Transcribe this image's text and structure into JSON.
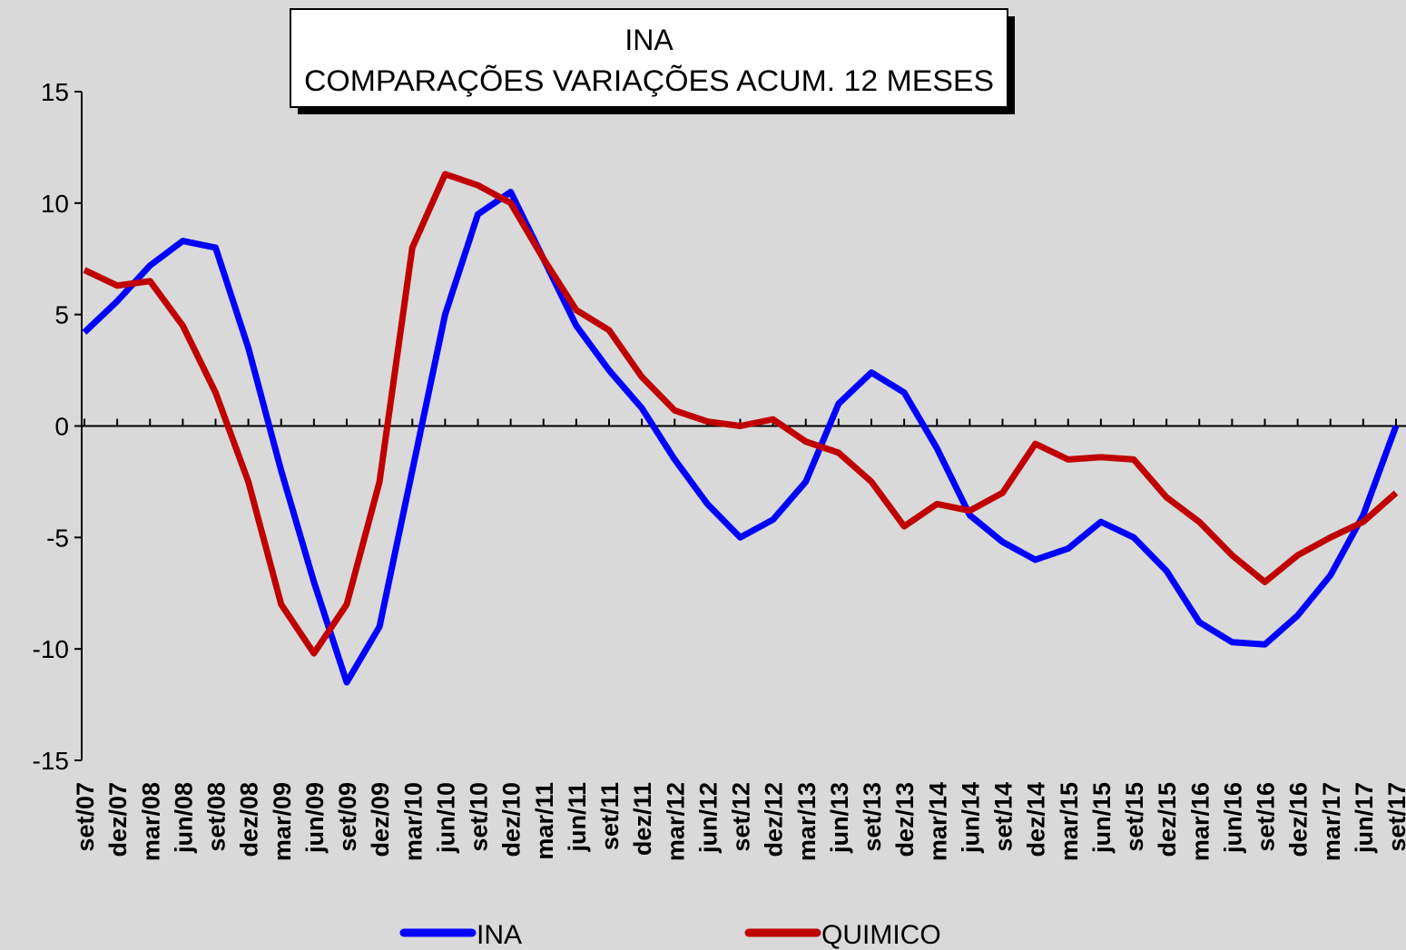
{
  "chart_data": {
    "type": "line",
    "title": [
      "INA",
      "COMPARAÇÕES VARIAÇÕES ACUM. 12 MESES"
    ],
    "categories": [
      "set/07",
      "dez/07",
      "mar/08",
      "jun/08",
      "set/08",
      "dez/08",
      "mar/09",
      "jun/09",
      "set/09",
      "dez/09",
      "mar/10",
      "jun/10",
      "set/10",
      "dez/10",
      "mar/11",
      "jun/11",
      "set/11",
      "dez/11",
      "mar/12",
      "jun/12",
      "set/12",
      "dez/12",
      "mar/13",
      "jun/13",
      "set/13",
      "dez/13",
      "mar/14",
      "jun/14",
      "set/14",
      "dez/14",
      "mar/15",
      "jun/15",
      "set/15",
      "dez/15",
      "mar/16",
      "jun/16",
      "set/16",
      "dez/16",
      "mar/17",
      "jun/17",
      "set/17"
    ],
    "series": [
      {
        "name": "INA",
        "color": "#0000ff",
        "values": [
          4.2,
          5.6,
          7.2,
          8.3,
          8.0,
          3.5,
          -2.0,
          -7.0,
          -11.5,
          -9.0,
          -2.0,
          5.0,
          9.5,
          10.5,
          7.5,
          4.5,
          2.5,
          0.8,
          -1.5,
          -3.5,
          -5.0,
          -4.2,
          -2.5,
          1.0,
          2.4,
          1.5,
          -1.0,
          -4.0,
          -5.2,
          -6.0,
          -5.5,
          -4.3,
          -5.0,
          -6.5,
          -8.8,
          -9.7,
          -9.8,
          -8.5,
          -6.7,
          -4.0,
          0.0
        ]
      },
      {
        "name": "QUIMICO",
        "color": "#c00000",
        "values": [
          7.0,
          6.3,
          6.5,
          4.5,
          1.5,
          -2.5,
          -8.0,
          -10.2,
          -8.0,
          -2.5,
          8.0,
          11.3,
          10.8,
          10.0,
          7.5,
          5.2,
          4.3,
          2.2,
          0.7,
          0.2,
          0.0,
          0.3,
          -0.7,
          -1.2,
          -2.5,
          -4.5,
          -3.5,
          -3.8,
          -3.0,
          -0.8,
          -1.5,
          -1.4,
          -1.5,
          -3.2,
          -4.3,
          -5.8,
          -7.0,
          -5.8,
          -5.0,
          -4.3,
          -3.0
        ]
      }
    ],
    "ylim": [
      -15,
      15
    ],
    "yticks": [
      -15,
      -10,
      -5,
      0,
      5,
      10,
      15
    ],
    "legend": "bottom"
  }
}
